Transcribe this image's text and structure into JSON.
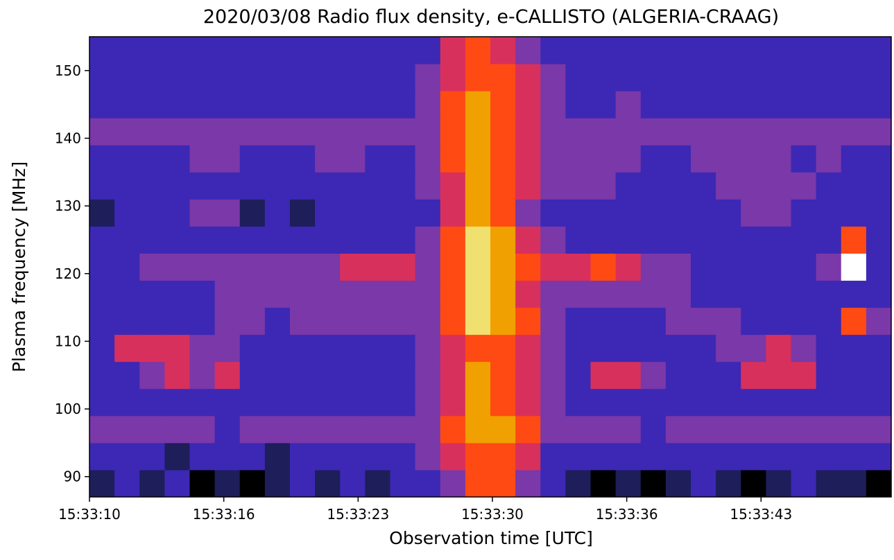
{
  "chart_data": {
    "type": "heatmap",
    "title": "2020/03/08  Radio flux density, e-CALLISTO (ALGERIA-CRAAG)",
    "x_label": "Observation time [UTC]",
    "y_label": "Plasma frequency [MHz]",
    "xlim": [
      10,
      48.8
    ],
    "xticks": [
      {
        "value": 10,
        "label": "15:33:10"
      },
      {
        "value": 16.5,
        "label": "15:33:16"
      },
      {
        "value": 23,
        "label": "15:33:23"
      },
      {
        "value": 29.5,
        "label": "15:33:30"
      },
      {
        "value": 36,
        "label": "15:33:36"
      },
      {
        "value": 42.5,
        "label": "15:33:43"
      }
    ],
    "ylim": [
      87,
      155
    ],
    "yticks": [
      90,
      100,
      110,
      120,
      130,
      140,
      150
    ],
    "y": [
      89,
      93,
      97,
      101,
      105,
      109,
      113,
      117,
      121,
      125,
      129,
      133,
      137,
      141,
      145,
      149,
      153
    ],
    "colormap": [
      "#000000",
      "#1e1e5a",
      "#3c28b4",
      "#7a38a8",
      "#d8305c",
      "#ff4a14",
      "#f0a000",
      "#f0e070",
      "#ffffff"
    ],
    "values": [
      [
        1,
        2,
        1,
        2,
        0,
        1,
        0,
        1,
        2,
        1,
        2,
        1,
        2,
        2,
        3,
        5,
        5,
        3,
        2,
        1,
        0,
        1,
        0,
        1,
        2,
        1,
        0,
        1,
        2,
        1,
        1,
        0
      ],
      [
        2,
        2,
        2,
        1,
        2,
        2,
        2,
        1,
        2,
        2,
        2,
        2,
        2,
        3,
        4,
        5,
        5,
        4,
        2,
        2,
        2,
        2,
        2,
        2,
        2,
        2,
        2,
        2,
        2,
        2,
        2,
        2
      ],
      [
        3,
        3,
        3,
        3,
        3,
        2,
        3,
        3,
        3,
        3,
        3,
        3,
        3,
        3,
        5,
        6,
        6,
        5,
        3,
        3,
        3,
        3,
        2,
        3,
        3,
        3,
        3,
        3,
        3,
        3,
        3,
        3
      ],
      [
        2,
        2,
        2,
        2,
        2,
        2,
        2,
        2,
        2,
        2,
        2,
        2,
        2,
        3,
        4,
        6,
        5,
        4,
        3,
        2,
        2,
        2,
        2,
        2,
        2,
        2,
        2,
        2,
        2,
        2,
        2,
        2
      ],
      [
        2,
        2,
        3,
        4,
        3,
        4,
        2,
        2,
        2,
        2,
        2,
        2,
        2,
        3,
        4,
        6,
        5,
        4,
        3,
        2,
        4,
        4,
        3,
        2,
        2,
        2,
        4,
        4,
        4,
        2,
        2,
        2
      ],
      [
        2,
        4,
        4,
        4,
        3,
        3,
        2,
        2,
        2,
        2,
        2,
        2,
        2,
        3,
        4,
        5,
        5,
        4,
        3,
        2,
        2,
        2,
        2,
        2,
        2,
        3,
        3,
        4,
        3,
        2,
        2,
        2
      ],
      [
        2,
        2,
        2,
        2,
        2,
        3,
        3,
        2,
        3,
        3,
        3,
        3,
        3,
        3,
        5,
        7,
        6,
        5,
        3,
        2,
        2,
        2,
        2,
        3,
        3,
        3,
        2,
        2,
        2,
        2,
        5,
        3
      ],
      [
        2,
        2,
        2,
        2,
        2,
        3,
        3,
        3,
        3,
        3,
        3,
        3,
        3,
        3,
        5,
        7,
        6,
        4,
        3,
        3,
        3,
        3,
        3,
        3,
        2,
        2,
        2,
        2,
        2,
        2,
        2,
        2
      ],
      [
        2,
        2,
        3,
        3,
        3,
        3,
        3,
        3,
        3,
        3,
        4,
        4,
        4,
        3,
        5,
        7,
        6,
        5,
        4,
        4,
        5,
        4,
        3,
        3,
        2,
        2,
        2,
        2,
        2,
        3,
        8,
        2
      ],
      [
        2,
        2,
        2,
        2,
        2,
        2,
        2,
        2,
        2,
        2,
        2,
        2,
        2,
        3,
        5,
        7,
        6,
        4,
        3,
        2,
        2,
        2,
        2,
        2,
        2,
        2,
        2,
        2,
        2,
        2,
        5,
        2
      ],
      [
        1,
        2,
        2,
        2,
        3,
        3,
        1,
        2,
        1,
        2,
        2,
        2,
        2,
        2,
        4,
        6,
        5,
        3,
        2,
        2,
        2,
        2,
        2,
        2,
        2,
        2,
        3,
        3,
        2,
        2,
        2,
        2
      ],
      [
        2,
        2,
        2,
        2,
        2,
        2,
        2,
        2,
        2,
        2,
        2,
        2,
        2,
        3,
        4,
        6,
        5,
        4,
        3,
        3,
        3,
        2,
        2,
        2,
        2,
        3,
        3,
        3,
        3,
        2,
        2,
        2
      ],
      [
        2,
        2,
        2,
        2,
        3,
        3,
        2,
        2,
        2,
        3,
        3,
        2,
        2,
        3,
        5,
        6,
        5,
        4,
        3,
        3,
        3,
        3,
        2,
        2,
        3,
        3,
        3,
        3,
        2,
        3,
        2,
        2
      ],
      [
        3,
        3,
        3,
        3,
        3,
        3,
        3,
        3,
        3,
        3,
        3,
        3,
        3,
        3,
        5,
        6,
        5,
        4,
        3,
        3,
        3,
        3,
        3,
        3,
        3,
        3,
        3,
        3,
        3,
        3,
        3,
        3
      ],
      [
        2,
        2,
        2,
        2,
        2,
        2,
        2,
        2,
        2,
        2,
        2,
        2,
        2,
        3,
        5,
        6,
        5,
        4,
        3,
        2,
        2,
        3,
        2,
        2,
        2,
        2,
        2,
        2,
        2,
        2,
        2,
        2
      ],
      [
        2,
        2,
        2,
        2,
        2,
        2,
        2,
        2,
        2,
        2,
        2,
        2,
        2,
        3,
        4,
        5,
        5,
        4,
        3,
        2,
        2,
        2,
        2,
        2,
        2,
        2,
        2,
        2,
        2,
        2,
        2,
        2
      ],
      [
        2,
        2,
        2,
        2,
        2,
        2,
        2,
        2,
        2,
        2,
        2,
        2,
        2,
        2,
        4,
        5,
        4,
        3,
        2,
        2,
        2,
        2,
        2,
        2,
        2,
        2,
        2,
        2,
        2,
        2,
        2,
        2
      ]
    ]
  }
}
